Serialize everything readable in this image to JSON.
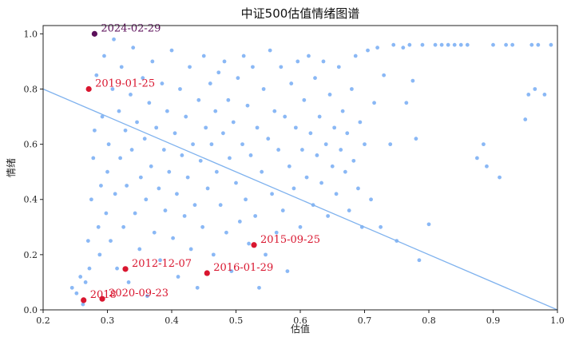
{
  "chart_data": {
    "type": "scatter",
    "title": "中证500估值情绪图谱",
    "xlabel": "估值",
    "ylabel": "情绪",
    "xlim": [
      0.2,
      1.0
    ],
    "ylim": [
      0.0,
      1.03
    ],
    "xticks": [
      "0.2",
      "0.3",
      "0.4",
      "0.5",
      "0.6",
      "0.7",
      "0.8",
      "0.9",
      "1.0"
    ],
    "yticks": [
      "0.0",
      "0.2",
      "0.4",
      "0.6",
      "0.8",
      "1.0"
    ],
    "grid": false,
    "colors": {
      "points": "#8ab8f5",
      "line": "#7fb2ee",
      "highlight": "#d9162f",
      "latest": "#5b0f5a"
    },
    "regression_line": {
      "x": [
        0.2,
        1.0
      ],
      "y": [
        0.8,
        0.0
      ]
    },
    "background_points": [
      [
        0.245,
        0.08
      ],
      [
        0.252,
        0.06
      ],
      [
        0.258,
        0.12
      ],
      [
        0.262,
        0.02
      ],
      [
        0.266,
        0.1
      ],
      [
        0.27,
        0.25
      ],
      [
        0.272,
        0.15
      ],
      [
        0.275,
        0.4
      ],
      [
        0.278,
        0.55
      ],
      [
        0.28,
        0.65
      ],
      [
        0.283,
        0.85
      ],
      [
        0.286,
        0.3
      ],
      [
        0.288,
        0.2
      ],
      [
        0.29,
        0.45
      ],
      [
        0.292,
        0.7
      ],
      [
        0.295,
        0.92
      ],
      [
        0.298,
        0.35
      ],
      [
        0.3,
        0.5
      ],
      [
        0.302,
        0.6
      ],
      [
        0.305,
        0.25
      ],
      [
        0.308,
        0.8
      ],
      [
        0.31,
        0.98
      ],
      [
        0.312,
        0.42
      ],
      [
        0.315,
        0.15
      ],
      [
        0.318,
        0.72
      ],
      [
        0.32,
        0.55
      ],
      [
        0.322,
        0.88
      ],
      [
        0.325,
        0.3
      ],
      [
        0.328,
        0.65
      ],
      [
        0.33,
        0.45
      ],
      [
        0.333,
        0.1
      ],
      [
        0.336,
        0.78
      ],
      [
        0.338,
        0.58
      ],
      [
        0.34,
        0.95
      ],
      [
        0.343,
        0.35
      ],
      [
        0.346,
        0.68
      ],
      [
        0.35,
        0.22
      ],
      [
        0.352,
        0.48
      ],
      [
        0.355,
        0.84
      ],
      [
        0.358,
        0.62
      ],
      [
        0.36,
        0.4
      ],
      [
        0.362,
        0.05
      ],
      [
        0.365,
        0.75
      ],
      [
        0.368,
        0.52
      ],
      [
        0.37,
        0.9
      ],
      [
        0.373,
        0.28
      ],
      [
        0.376,
        0.66
      ],
      [
        0.38,
        0.44
      ],
      [
        0.382,
        0.18
      ],
      [
        0.385,
        0.82
      ],
      [
        0.388,
        0.58
      ],
      [
        0.39,
        0.36
      ],
      [
        0.393,
        0.72
      ],
      [
        0.396,
        0.5
      ],
      [
        0.4,
        0.94
      ],
      [
        0.402,
        0.26
      ],
      [
        0.405,
        0.64
      ],
      [
        0.408,
        0.42
      ],
      [
        0.41,
        0.12
      ],
      [
        0.413,
        0.8
      ],
      [
        0.416,
        0.56
      ],
      [
        0.42,
        0.34
      ],
      [
        0.422,
        0.7
      ],
      [
        0.425,
        0.48
      ],
      [
        0.428,
        0.88
      ],
      [
        0.43,
        0.22
      ],
      [
        0.433,
        0.6
      ],
      [
        0.436,
        0.38
      ],
      [
        0.44,
        0.08
      ],
      [
        0.442,
        0.76
      ],
      [
        0.445,
        0.54
      ],
      [
        0.448,
        0.3
      ],
      [
        0.45,
        0.92
      ],
      [
        0.453,
        0.66
      ],
      [
        0.456,
        0.44
      ],
      [
        0.46,
        0.82
      ],
      [
        0.462,
        0.6
      ],
      [
        0.465,
        0.2
      ],
      [
        0.468,
        0.72
      ],
      [
        0.47,
        0.5
      ],
      [
        0.473,
        0.86
      ],
      [
        0.476,
        0.38
      ],
      [
        0.48,
        0.64
      ],
      [
        0.482,
        0.9
      ],
      [
        0.485,
        0.28
      ],
      [
        0.488,
        0.76
      ],
      [
        0.49,
        0.55
      ],
      [
        0.493,
        0.14
      ],
      [
        0.496,
        0.68
      ],
      [
        0.5,
        0.46
      ],
      [
        0.503,
        0.84
      ],
      [
        0.506,
        0.32
      ],
      [
        0.51,
        0.6
      ],
      [
        0.512,
        0.92
      ],
      [
        0.515,
        0.4
      ],
      [
        0.518,
        0.74
      ],
      [
        0.52,
        0.24
      ],
      [
        0.523,
        0.56
      ],
      [
        0.526,
        0.88
      ],
      [
        0.53,
        0.34
      ],
      [
        0.533,
        0.66
      ],
      [
        0.536,
        0.08
      ],
      [
        0.54,
        0.5
      ],
      [
        0.543,
        0.8
      ],
      [
        0.546,
        0.2
      ],
      [
        0.55,
        0.62
      ],
      [
        0.553,
        0.94
      ],
      [
        0.556,
        0.42
      ],
      [
        0.56,
        0.72
      ],
      [
        0.563,
        0.28
      ],
      [
        0.566,
        0.58
      ],
      [
        0.57,
        0.88
      ],
      [
        0.573,
        0.36
      ],
      [
        0.576,
        0.7
      ],
      [
        0.58,
        0.14
      ],
      [
        0.583,
        0.52
      ],
      [
        0.586,
        0.82
      ],
      [
        0.59,
        0.44
      ],
      [
        0.593,
        0.66
      ],
      [
        0.596,
        0.9
      ],
      [
        0.6,
        0.3
      ],
      [
        0.603,
        0.58
      ],
      [
        0.606,
        0.76
      ],
      [
        0.61,
        0.48
      ],
      [
        0.613,
        0.92
      ],
      [
        0.616,
        0.64
      ],
      [
        0.62,
        0.38
      ],
      [
        0.623,
        0.84
      ],
      [
        0.626,
        0.56
      ],
      [
        0.63,
        0.7
      ],
      [
        0.633,
        0.46
      ],
      [
        0.636,
        0.9
      ],
      [
        0.64,
        0.6
      ],
      [
        0.643,
        0.34
      ],
      [
        0.646,
        0.78
      ],
      [
        0.65,
        0.52
      ],
      [
        0.653,
        0.66
      ],
      [
        0.656,
        0.42
      ],
      [
        0.66,
        0.88
      ],
      [
        0.663,
        0.58
      ],
      [
        0.666,
        0.72
      ],
      [
        0.67,
        0.5
      ],
      [
        0.673,
        0.64
      ],
      [
        0.676,
        0.36
      ],
      [
        0.68,
        0.8
      ],
      [
        0.683,
        0.54
      ],
      [
        0.686,
        0.92
      ],
      [
        0.69,
        0.44
      ],
      [
        0.693,
        0.68
      ],
      [
        0.696,
        0.3
      ],
      [
        0.7,
        0.6
      ],
      [
        0.705,
        0.94
      ],
      [
        0.71,
        0.4
      ],
      [
        0.715,
        0.75
      ],
      [
        0.72,
        0.95
      ],
      [
        0.725,
        0.3
      ],
      [
        0.73,
        0.85
      ],
      [
        0.74,
        0.6
      ],
      [
        0.745,
        0.96
      ],
      [
        0.75,
        0.25
      ],
      [
        0.76,
        0.95
      ],
      [
        0.765,
        0.75
      ],
      [
        0.77,
        0.96
      ],
      [
        0.775,
        0.83
      ],
      [
        0.78,
        0.62
      ],
      [
        0.785,
        0.18
      ],
      [
        0.79,
        0.96
      ],
      [
        0.8,
        0.31
      ],
      [
        0.81,
        0.96
      ],
      [
        0.82,
        0.96
      ],
      [
        0.83,
        0.96
      ],
      [
        0.84,
        0.96
      ],
      [
        0.85,
        0.96
      ],
      [
        0.86,
        0.96
      ],
      [
        0.875,
        0.55
      ],
      [
        0.885,
        0.6
      ],
      [
        0.89,
        0.52
      ],
      [
        0.9,
        0.96
      ],
      [
        0.91,
        0.48
      ],
      [
        0.92,
        0.96
      ],
      [
        0.93,
        0.96
      ],
      [
        0.95,
        0.69
      ],
      [
        0.955,
        0.78
      ],
      [
        0.96,
        0.96
      ],
      [
        0.965,
        0.8
      ],
      [
        0.97,
        0.96
      ],
      [
        0.98,
        0.78
      ],
      [
        0.99,
        0.96
      ]
    ],
    "highlights": [
      {
        "x": 0.28,
        "y": 1.0,
        "label": "2024-02-29",
        "latest": true
      },
      {
        "x": 0.271,
        "y": 0.8,
        "label": "2019-01-25"
      },
      {
        "x": 0.528,
        "y": 0.235,
        "label": "2015-09-25"
      },
      {
        "x": 0.328,
        "y": 0.148,
        "label": "2012-12-07"
      },
      {
        "x": 0.455,
        "y": 0.133,
        "label": "2016-01-29"
      },
      {
        "x": 0.263,
        "y": 0.035,
        "label": "2018"
      },
      {
        "x": 0.292,
        "y": 0.04,
        "label": "2020-09-23"
      }
    ]
  }
}
